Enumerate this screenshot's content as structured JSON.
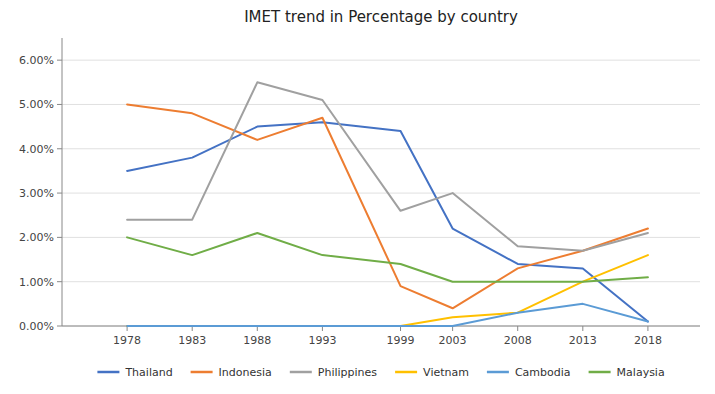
{
  "chart_data": {
    "type": "line",
    "title": "IMET trend in Percentage by country",
    "x": [
      1978,
      1983,
      1988,
      1993,
      1999,
      2003,
      2008,
      2013,
      2018
    ],
    "xlim": [
      1973,
      2022
    ],
    "xticks": [
      1978,
      1983,
      1988,
      1993,
      1999,
      2003,
      2008,
      2013,
      2018
    ],
    "series": [
      {
        "name": "Thailand",
        "color": "#4472c4",
        "values": [
          0.035,
          0.038,
          0.045,
          0.046,
          0.044,
          0.022,
          0.014,
          0.013,
          0.001
        ]
      },
      {
        "name": "Indonesia",
        "color": "#ed7d31",
        "values": [
          0.05,
          0.048,
          0.042,
          0.047,
          0.009,
          0.004,
          0.013,
          0.017,
          0.022
        ]
      },
      {
        "name": "Philippines",
        "color": "#a0a0a0",
        "values": [
          0.024,
          0.024,
          0.055,
          0.051,
          0.026,
          0.03,
          0.018,
          0.017,
          0.021
        ]
      },
      {
        "name": "Vietnam",
        "color": "#ffc000",
        "values": [
          0.0,
          0.0,
          0.0,
          0.0,
          0.0,
          0.002,
          0.003,
          0.01,
          0.016
        ]
      },
      {
        "name": "Cambodia",
        "color": "#5b9bd5",
        "values": [
          0.0,
          0.0,
          0.0,
          0.0,
          0.0,
          0.0,
          0.003,
          0.005,
          0.001
        ]
      },
      {
        "name": "Malaysia",
        "color": "#70ad47",
        "values": [
          0.02,
          0.016,
          0.021,
          0.016,
          0.014,
          0.01,
          0.01,
          0.01,
          0.011
        ]
      }
    ],
    "ylim": [
      0.0,
      0.065
    ],
    "yticks": [
      {
        "value": 0.0,
        "label": "0.00%"
      },
      {
        "value": 0.01,
        "label": "1.00%"
      },
      {
        "value": 0.02,
        "label": "2.00%"
      },
      {
        "value": 0.03,
        "label": "3.00%"
      },
      {
        "value": 0.04,
        "label": "4.00%"
      },
      {
        "value": 0.05,
        "label": "5.00%"
      },
      {
        "value": 0.06,
        "label": "6.00%"
      }
    ],
    "grid": true,
    "legend": "bottom"
  }
}
